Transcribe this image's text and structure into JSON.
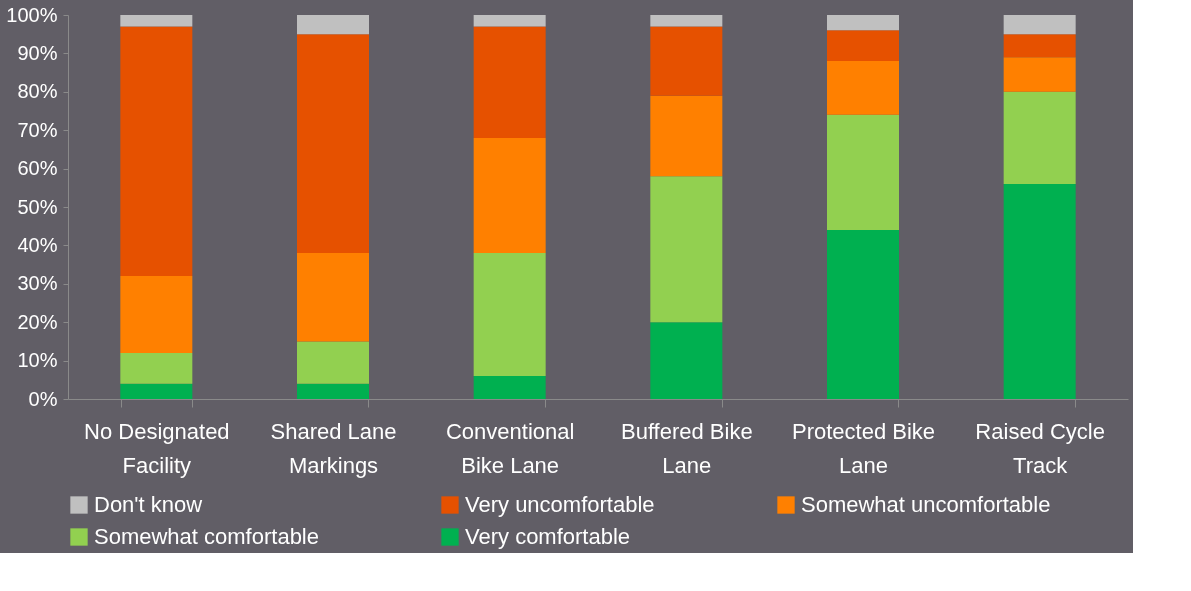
{
  "chart_data": {
    "type": "bar",
    "stacked": true,
    "categories": [
      "No Designated\nFacility",
      "Shared Lane\nMarkings",
      "Conventional\nBike Lane",
      "Buffered Bike\nLane",
      "Protected Bike\nLane",
      "Raised Cycle\nTrack"
    ],
    "series": [
      {
        "name": "Very comfortable",
        "color": "#00b050",
        "values": [
          4,
          4,
          6,
          20,
          44,
          56
        ]
      },
      {
        "name": "Somewhat comfortable",
        "color": "#92d050",
        "values": [
          8,
          11,
          32,
          38,
          30,
          24
        ]
      },
      {
        "name": "Somewhat uncomfortable",
        "color": "#ff8000",
        "values": [
          20,
          23,
          30,
          21,
          14,
          9
        ]
      },
      {
        "name": "Very uncomfortable",
        "color": "#e65100",
        "values": [
          65,
          57,
          29,
          18,
          8,
          6
        ]
      },
      {
        "name": "Don't know",
        "color": "#c0c0c0",
        "values": [
          3,
          5,
          3,
          3,
          4,
          5
        ]
      }
    ],
    "ylim": [
      0,
      100
    ],
    "yticks": [
      {
        "value": 0,
        "label": "0%"
      },
      {
        "value": 10,
        "label": "10%"
      },
      {
        "value": 20,
        "label": "20%"
      },
      {
        "value": 30,
        "label": "30%"
      },
      {
        "value": 40,
        "label": "40%"
      },
      {
        "value": 50,
        "label": "50%"
      },
      {
        "value": 60,
        "label": "60%"
      },
      {
        "value": 70,
        "label": "70%"
      },
      {
        "value": 80,
        "label": "80%"
      },
      {
        "value": 90,
        "label": "90%"
      },
      {
        "value": 100,
        "label": "100%"
      }
    ],
    "grid": false,
    "legend": "bottom"
  }
}
